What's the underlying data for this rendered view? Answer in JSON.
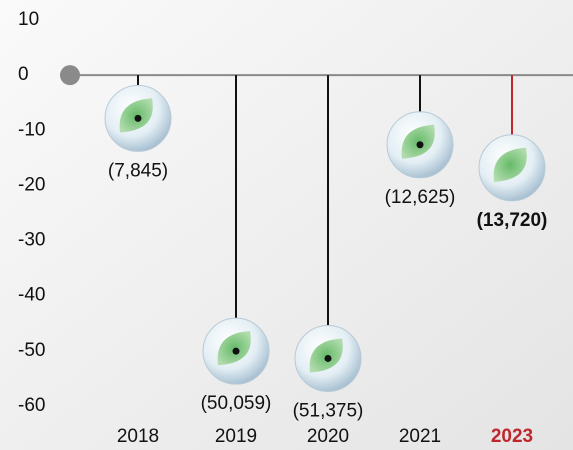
{
  "chart_data": {
    "type": "lollipop",
    "categories": [
      "2018",
      "2019",
      "2020",
      "2021",
      "2023"
    ],
    "values": [
      -7.845,
      -50.059,
      -51.375,
      -12.625,
      -13.72
    ],
    "value_labels": [
      "(7,845)",
      "(50,059)",
      "(51,375)",
      "(12,625)",
      "(13,720)"
    ],
    "color": "#111111",
    "highlight_index": 4,
    "highlight_color": "#c0272d",
    "ylim": [
      10,
      -60
    ],
    "yticks": [
      10,
      0,
      -10,
      -20,
      -30,
      -40,
      -50,
      -60
    ]
  }
}
